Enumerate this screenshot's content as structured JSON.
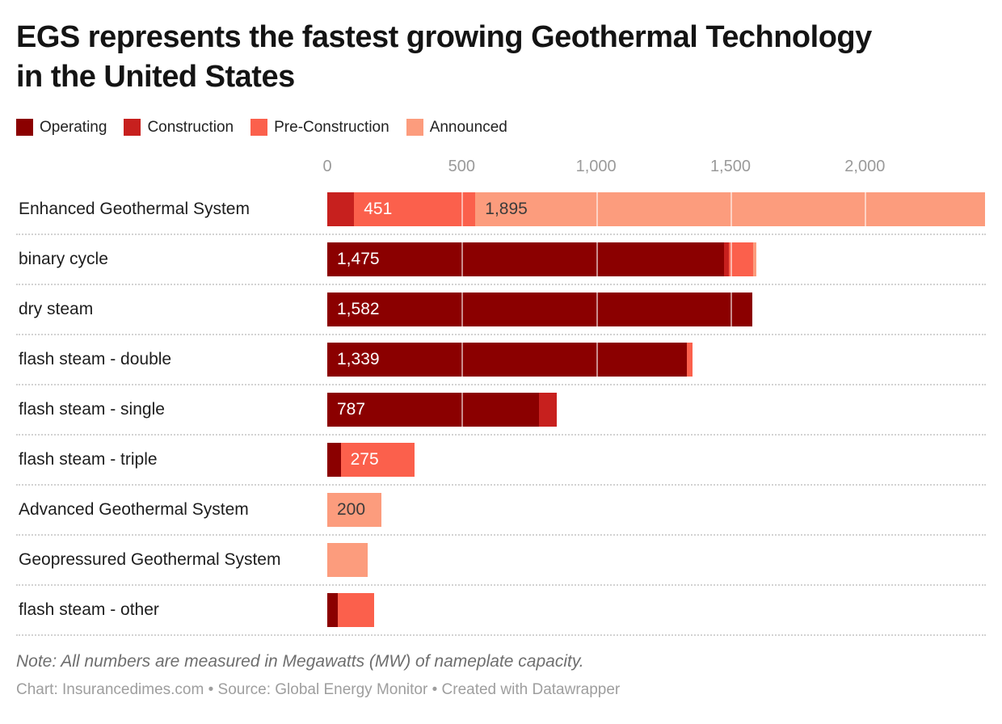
{
  "title": {
    "line1": "EGS represents the fastest growing Geothermal Technology",
    "line2": "in the United States"
  },
  "legend": [
    {
      "label": "Operating",
      "color": "#8b0000"
    },
    {
      "label": "Construction",
      "color": "#c7201e"
    },
    {
      "label": "Pre-Construction",
      "color": "#fb604c"
    },
    {
      "label": "Announced",
      "color": "#fc9c7d"
    }
  ],
  "chart_data": {
    "type": "bar",
    "orientation": "horizontal",
    "stacked": true,
    "unit": "MW (nameplate capacity)",
    "xlim": [
      0,
      2450
    ],
    "x_ticks": [
      0,
      500,
      1000,
      1500,
      2000
    ],
    "tick_labels": [
      "0",
      "500",
      "1,000",
      "1,500",
      "2,000"
    ],
    "grid": "white lines over bars",
    "legend_position": "top",
    "series_names": [
      "Operating",
      "Construction",
      "Pre-Construction",
      "Announced"
    ],
    "rows": [
      {
        "category": "Enhanced Geothermal System",
        "values": [
          0,
          100,
          451,
          1895
        ],
        "labels": [
          "",
          "",
          "451",
          "1,895"
        ]
      },
      {
        "category": "binary cycle",
        "values": [
          1475,
          20,
          90,
          12
        ],
        "labels": [
          "1,475",
          "",
          "",
          ""
        ]
      },
      {
        "category": "dry steam",
        "values": [
          1582,
          0,
          0,
          0
        ],
        "labels": [
          "1,582",
          "",
          "",
          ""
        ]
      },
      {
        "category": "flash steam - double",
        "values": [
          1339,
          0,
          20,
          0
        ],
        "labels": [
          "1,339",
          "",
          "",
          ""
        ]
      },
      {
        "category": "flash steam - single",
        "values": [
          787,
          66,
          0,
          0
        ],
        "labels": [
          "787",
          "",
          "",
          ""
        ]
      },
      {
        "category": "flash steam - triple",
        "values": [
          50,
          0,
          275,
          0
        ],
        "labels": [
          "",
          "",
          "275",
          ""
        ]
      },
      {
        "category": "Advanced Geothermal System",
        "values": [
          0,
          0,
          0,
          200
        ],
        "labels": [
          "",
          "",
          "",
          "200"
        ]
      },
      {
        "category": "Geopressured Geothermal System",
        "values": [
          0,
          0,
          0,
          150
        ],
        "labels": [
          "",
          "",
          "",
          ""
        ]
      },
      {
        "category": "flash steam - other",
        "values": [
          38,
          0,
          137,
          0
        ],
        "labels": [
          "",
          "",
          "",
          ""
        ]
      }
    ]
  },
  "note": "Note: All numbers are measured in Megawatts (MW) of nameplate capacity.",
  "footer": "Chart: Insurancedimes.com • Source: Global Energy Monitor • Created with Datawrapper"
}
